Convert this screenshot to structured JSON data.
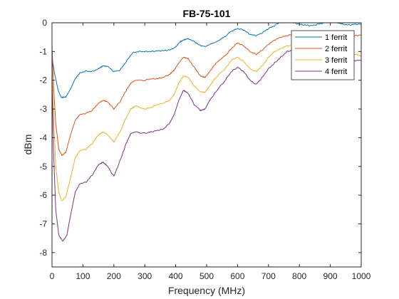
{
  "chart_data": {
    "type": "line",
    "title": "FB-75-101",
    "xlabel": "Frequency (MHz)",
    "ylabel": "dBm",
    "xlim": [
      0,
      1000
    ],
    "ylim": [
      -8.5,
      0
    ],
    "xticks": [
      0,
      100,
      200,
      300,
      400,
      500,
      600,
      700,
      800,
      900,
      1000
    ],
    "yticks": [
      0,
      -1,
      -2,
      -3,
      -4,
      -5,
      -6,
      -7,
      -8
    ],
    "grid": false,
    "legend_position": "top-right",
    "series": [
      {
        "name": "1 ferrit",
        "color": "#0072BD",
        "points": [
          [
            0,
            -1.2
          ],
          [
            8,
            -1.75
          ],
          [
            20,
            -2.35
          ],
          [
            30,
            -2.6
          ],
          [
            45,
            -2.58
          ],
          [
            60,
            -2.3
          ],
          [
            75,
            -1.95
          ],
          [
            90,
            -1.75
          ],
          [
            110,
            -1.68
          ],
          [
            130,
            -1.7
          ],
          [
            150,
            -1.6
          ],
          [
            165,
            -1.5
          ],
          [
            180,
            -1.52
          ],
          [
            200,
            -1.7
          ],
          [
            220,
            -1.65
          ],
          [
            240,
            -1.35
          ],
          [
            260,
            -1.05
          ],
          [
            280,
            -1.0
          ],
          [
            300,
            -1.0
          ],
          [
            320,
            -1.0
          ],
          [
            340,
            -0.98
          ],
          [
            360,
            -0.97
          ],
          [
            380,
            -0.95
          ],
          [
            400,
            -0.85
          ],
          [
            410,
            -0.7
          ],
          [
            425,
            -0.6
          ],
          [
            440,
            -0.55
          ],
          [
            460,
            -0.65
          ],
          [
            480,
            -0.8
          ],
          [
            495,
            -0.82
          ],
          [
            520,
            -0.72
          ],
          [
            550,
            -0.55
          ],
          [
            580,
            -0.3
          ],
          [
            600,
            -0.2
          ],
          [
            620,
            -0.25
          ],
          [
            640,
            -0.4
          ],
          [
            660,
            -0.45
          ],
          [
            680,
            -0.35
          ],
          [
            700,
            -0.2
          ],
          [
            720,
            -0.1
          ],
          [
            740,
            0.05
          ],
          [
            760,
            0.05
          ],
          [
            780,
            0.0
          ],
          [
            800,
            -0.05
          ],
          [
            820,
            -0.08
          ],
          [
            840,
            -0.1
          ],
          [
            860,
            -0.05
          ],
          [
            880,
            0.0
          ],
          [
            900,
            0.05
          ],
          [
            920,
            0.02
          ],
          [
            940,
            -0.05
          ],
          [
            960,
            -0.08
          ],
          [
            980,
            -0.05
          ],
          [
            1000,
            -0.05
          ]
        ]
      },
      {
        "name": "2 ferrit",
        "color": "#D95319",
        "points": [
          [
            0,
            -0.8
          ],
          [
            5,
            -2.2
          ],
          [
            12,
            -3.5
          ],
          [
            22,
            -4.4
          ],
          [
            32,
            -4.62
          ],
          [
            45,
            -4.5
          ],
          [
            60,
            -3.9
          ],
          [
            75,
            -3.4
          ],
          [
            90,
            -3.2
          ],
          [
            110,
            -3.15
          ],
          [
            130,
            -3.05
          ],
          [
            150,
            -2.8
          ],
          [
            165,
            -2.7
          ],
          [
            180,
            -2.75
          ],
          [
            200,
            -3.0
          ],
          [
            220,
            -2.75
          ],
          [
            240,
            -2.35
          ],
          [
            255,
            -2.1
          ],
          [
            270,
            -2.0
          ],
          [
            300,
            -2.0
          ],
          [
            320,
            -1.95
          ],
          [
            340,
            -1.95
          ],
          [
            360,
            -1.9
          ],
          [
            380,
            -1.8
          ],
          [
            395,
            -1.65
          ],
          [
            410,
            -1.4
          ],
          [
            425,
            -1.2
          ],
          [
            440,
            -1.25
          ],
          [
            460,
            -1.55
          ],
          [
            480,
            -1.85
          ],
          [
            495,
            -1.9
          ],
          [
            510,
            -1.7
          ],
          [
            530,
            -1.4
          ],
          [
            560,
            -1.15
          ],
          [
            580,
            -0.9
          ],
          [
            600,
            -0.7
          ],
          [
            620,
            -0.8
          ],
          [
            640,
            -1.0
          ],
          [
            660,
            -1.1
          ],
          [
            680,
            -0.95
          ],
          [
            700,
            -0.75
          ],
          [
            720,
            -0.6
          ],
          [
            740,
            -0.5
          ],
          [
            760,
            -0.45
          ],
          [
            780,
            -0.4
          ],
          [
            800,
            -0.35
          ],
          [
            820,
            -0.4
          ],
          [
            840,
            -0.45
          ],
          [
            860,
            -0.45
          ],
          [
            880,
            -0.38
          ],
          [
            900,
            -0.3
          ],
          [
            920,
            -0.28
          ],
          [
            940,
            -0.35
          ],
          [
            960,
            -0.4
          ],
          [
            980,
            -0.45
          ],
          [
            1000,
            -0.42
          ]
        ]
      },
      {
        "name": "3 ferrit",
        "color": "#EDB120",
        "points": [
          [
            0,
            -1.5
          ],
          [
            5,
            -3.2
          ],
          [
            12,
            -5.0
          ],
          [
            22,
            -5.9
          ],
          [
            32,
            -6.2
          ],
          [
            45,
            -6.05
          ],
          [
            60,
            -5.4
          ],
          [
            75,
            -4.7
          ],
          [
            90,
            -4.45
          ],
          [
            110,
            -4.4
          ],
          [
            130,
            -4.2
          ],
          [
            150,
            -3.9
          ],
          [
            165,
            -3.8
          ],
          [
            180,
            -3.9
          ],
          [
            200,
            -4.15
          ],
          [
            220,
            -3.8
          ],
          [
            240,
            -3.3
          ],
          [
            255,
            -3.0
          ],
          [
            270,
            -2.9
          ],
          [
            300,
            -3.0
          ],
          [
            320,
            -2.95
          ],
          [
            340,
            -2.85
          ],
          [
            360,
            -2.8
          ],
          [
            380,
            -2.7
          ],
          [
            395,
            -2.5
          ],
          [
            410,
            -2.1
          ],
          [
            425,
            -1.85
          ],
          [
            440,
            -1.9
          ],
          [
            460,
            -2.2
          ],
          [
            480,
            -2.4
          ],
          [
            495,
            -2.42
          ],
          [
            510,
            -2.2
          ],
          [
            530,
            -1.9
          ],
          [
            560,
            -1.6
          ],
          [
            580,
            -1.3
          ],
          [
            600,
            -1.2
          ],
          [
            620,
            -1.35
          ],
          [
            640,
            -1.6
          ],
          [
            660,
            -1.7
          ],
          [
            680,
            -1.5
          ],
          [
            700,
            -1.2
          ],
          [
            720,
            -1.0
          ],
          [
            740,
            -0.9
          ],
          [
            760,
            -0.8
          ],
          [
            780,
            -0.8
          ],
          [
            800,
            -0.75
          ],
          [
            820,
            -0.78
          ],
          [
            840,
            -0.85
          ],
          [
            860,
            -0.9
          ],
          [
            880,
            -0.95
          ],
          [
            900,
            -0.95
          ],
          [
            920,
            -0.9
          ],
          [
            940,
            -0.95
          ],
          [
            960,
            -1.05
          ],
          [
            980,
            -1.1
          ],
          [
            1000,
            -1.15
          ]
        ]
      },
      {
        "name": "4 ferrit",
        "color": "#7E2F8E",
        "points": [
          [
            0,
            -2.0
          ],
          [
            5,
            -4.5
          ],
          [
            12,
            -6.5
          ],
          [
            22,
            -7.4
          ],
          [
            35,
            -7.6
          ],
          [
            48,
            -7.4
          ],
          [
            60,
            -6.7
          ],
          [
            75,
            -5.9
          ],
          [
            90,
            -5.6
          ],
          [
            110,
            -5.55
          ],
          [
            130,
            -5.3
          ],
          [
            150,
            -4.95
          ],
          [
            165,
            -4.85
          ],
          [
            180,
            -5.0
          ],
          [
            200,
            -5.35
          ],
          [
            220,
            -4.8
          ],
          [
            240,
            -4.2
          ],
          [
            255,
            -3.85
          ],
          [
            270,
            -3.8
          ],
          [
            300,
            -3.85
          ],
          [
            320,
            -3.8
          ],
          [
            340,
            -3.75
          ],
          [
            360,
            -3.7
          ],
          [
            380,
            -3.5
          ],
          [
            395,
            -3.2
          ],
          [
            410,
            -2.7
          ],
          [
            425,
            -2.35
          ],
          [
            440,
            -2.45
          ],
          [
            460,
            -2.85
          ],
          [
            480,
            -3.05
          ],
          [
            495,
            -3.0
          ],
          [
            510,
            -2.7
          ],
          [
            530,
            -2.4
          ],
          [
            560,
            -2.0
          ],
          [
            580,
            -1.7
          ],
          [
            600,
            -1.55
          ],
          [
            620,
            -1.7
          ],
          [
            640,
            -2.0
          ],
          [
            660,
            -2.15
          ],
          [
            680,
            -1.9
          ],
          [
            700,
            -1.6
          ],
          [
            720,
            -1.4
          ],
          [
            740,
            -1.2
          ],
          [
            760,
            -1.0
          ],
          [
            780,
            -0.95
          ],
          [
            800,
            -0.95
          ],
          [
            820,
            -1.0
          ],
          [
            840,
            -1.1
          ],
          [
            860,
            -1.15
          ],
          [
            880,
            -1.2
          ],
          [
            900,
            -1.25
          ],
          [
            920,
            -1.2
          ],
          [
            940,
            -1.2
          ],
          [
            960,
            -1.3
          ],
          [
            980,
            -1.32
          ],
          [
            1000,
            -1.3
          ]
        ]
      }
    ]
  }
}
